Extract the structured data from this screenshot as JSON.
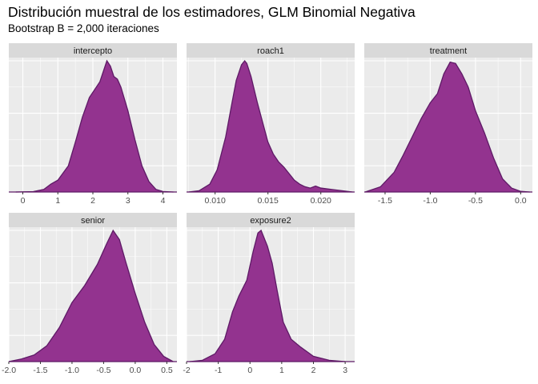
{
  "title": "Distribución muestral de los estimadores, GLM Binomial Negativa",
  "subtitle": "Bootstrap B = 2,000 iteraciones",
  "colors": {
    "fill": "#93338F",
    "line": "#5E1A66",
    "panel": "#EBEBEB",
    "strip": "#D9D9D9",
    "grid": "#FFFFFF"
  },
  "chart_data": [
    {
      "type": "area",
      "name": "intercepto",
      "xlim": [
        -0.4,
        4.4
      ],
      "ticks": [
        0,
        1,
        2,
        3,
        4
      ],
      "x": [
        -0.2,
        0.3,
        0.6,
        0.8,
        1.0,
        1.3,
        1.5,
        1.7,
        1.9,
        2.1,
        2.2,
        2.3,
        2.4,
        2.5,
        2.6,
        2.7,
        2.8,
        3.0,
        3.2,
        3.4,
        3.6,
        3.8,
        4.0,
        4.3
      ],
      "density": [
        0,
        0.003,
        0.02,
        0.06,
        0.09,
        0.2,
        0.38,
        0.57,
        0.72,
        0.8,
        0.84,
        0.92,
        1.0,
        0.96,
        0.88,
        0.86,
        0.8,
        0.62,
        0.4,
        0.2,
        0.08,
        0.02,
        0.004,
        0
      ]
    },
    {
      "type": "area",
      "name": "roach1",
      "xlim": [
        0.0073,
        0.0232
      ],
      "ticks": [
        0.01,
        0.015,
        0.02
      ],
      "tick_labels": [
        "0.010",
        "0.015",
        "0.020"
      ],
      "x": [
        0.0075,
        0.0085,
        0.0095,
        0.0102,
        0.011,
        0.0116,
        0.012,
        0.0125,
        0.0128,
        0.013,
        0.0134,
        0.014,
        0.0146,
        0.015,
        0.0155,
        0.016,
        0.0165,
        0.017,
        0.0175,
        0.018,
        0.0185,
        0.019,
        0.0195,
        0.02,
        0.021,
        0.022,
        0.023
      ],
      "density": [
        0,
        0.01,
        0.06,
        0.17,
        0.42,
        0.68,
        0.85,
        0.97,
        1.0,
        0.98,
        0.88,
        0.68,
        0.5,
        0.38,
        0.29,
        0.23,
        0.19,
        0.14,
        0.09,
        0.06,
        0.04,
        0.03,
        0.045,
        0.03,
        0.02,
        0.01,
        0
      ]
    },
    {
      "type": "area",
      "name": "treatment",
      "xlim": [
        -1.73,
        0.13
      ],
      "ticks": [
        -1.5,
        -1.0,
        -0.5,
        0.0
      ],
      "tick_labels": [
        "-1.5",
        "-1.0",
        "-0.5",
        "0.0"
      ],
      "x": [
        -1.72,
        -1.55,
        -1.4,
        -1.3,
        -1.2,
        -1.1,
        -1.0,
        -0.92,
        -0.85,
        -0.78,
        -0.72,
        -0.65,
        -0.58,
        -0.5,
        -0.4,
        -0.3,
        -0.2,
        -0.1,
        0.0,
        0.1
      ],
      "density": [
        0,
        0.04,
        0.15,
        0.28,
        0.42,
        0.56,
        0.68,
        0.75,
        0.9,
        0.99,
        0.98,
        0.9,
        0.8,
        0.62,
        0.45,
        0.26,
        0.1,
        0.03,
        0.005,
        0
      ]
    },
    {
      "type": "area",
      "name": "senior",
      "xlim": [
        -2.0,
        0.66
      ],
      "ticks": [
        -2.0,
        -1.5,
        -1.0,
        -0.5,
        0.0,
        0.5
      ],
      "tick_labels": [
        "-2.0",
        "-1.5",
        "-1.0",
        "-0.5",
        "0.0",
        "0.5"
      ],
      "x": [
        -2.0,
        -1.8,
        -1.6,
        -1.4,
        -1.2,
        -1.0,
        -0.8,
        -0.6,
        -0.45,
        -0.35,
        -0.25,
        -0.15,
        0.0,
        0.15,
        0.3,
        0.45,
        0.6
      ],
      "density": [
        0,
        0.02,
        0.05,
        0.12,
        0.26,
        0.45,
        0.58,
        0.74,
        0.9,
        1.0,
        0.93,
        0.76,
        0.52,
        0.3,
        0.13,
        0.04,
        0
      ]
    },
    {
      "type": "area",
      "name": "exposure2",
      "xlim": [
        -2.0,
        3.3
      ],
      "ticks": [
        -2,
        -1,
        0,
        1,
        2,
        3
      ],
      "x": [
        -1.9,
        -1.5,
        -1.1,
        -0.8,
        -0.55,
        -0.35,
        -0.1,
        0.1,
        0.25,
        0.35,
        0.45,
        0.55,
        0.7,
        0.85,
        1.05,
        1.3,
        1.6,
        2.0,
        2.5,
        3.0
      ],
      "density": [
        0,
        0.01,
        0.06,
        0.17,
        0.38,
        0.5,
        0.62,
        0.84,
        0.98,
        1.0,
        0.94,
        0.88,
        0.75,
        0.55,
        0.3,
        0.17,
        0.11,
        0.04,
        0.01,
        0
      ]
    }
  ]
}
